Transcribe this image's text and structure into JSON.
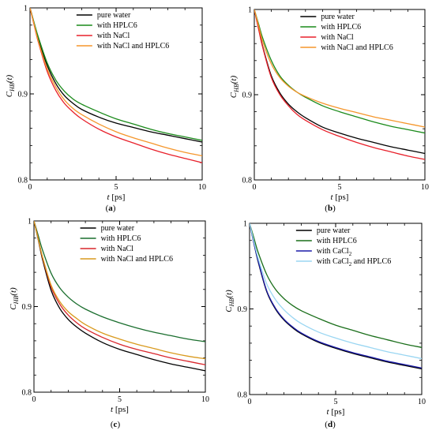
{
  "figure": {
    "panel_labels": [
      {
        "prefix": "(",
        "letter": "a",
        "suffix": ")"
      },
      {
        "prefix": "(",
        "letter": "b",
        "suffix": ")"
      },
      {
        "prefix": "(",
        "letter": "c",
        "suffix": ")"
      },
      {
        "prefix": "(",
        "letter": "d",
        "suffix": ")"
      }
    ]
  },
  "chart_data": [
    {
      "type": "line",
      "panel": "a",
      "xlabel": "t [ps]",
      "ylabel": "C_HB(t)",
      "xlim": [
        0,
        10
      ],
      "ylim": [
        0.8,
        1.0
      ],
      "xticks": [
        0,
        5,
        10
      ],
      "yticks": [
        0.8,
        0.9,
        1
      ],
      "ytick_labels": [
        "0.8",
        "0.9",
        "1"
      ],
      "grid": false,
      "legend_position": "top-right",
      "x": [
        0,
        0.25,
        0.5,
        1,
        1.5,
        2,
        2.5,
        3,
        4,
        5,
        6,
        7,
        8,
        9,
        10
      ],
      "series": [
        {
          "name": "pure water",
          "color": "#000000",
          "values": [
            1.0,
            0.981,
            0.962,
            0.933,
            0.912,
            0.898,
            0.889,
            0.882,
            0.873,
            0.866,
            0.861,
            0.856,
            0.852,
            0.848,
            0.844
          ]
        },
        {
          "name": "with HPLC6",
          "color": "#1a8a1a",
          "values": [
            1.0,
            0.982,
            0.965,
            0.936,
            0.916,
            0.903,
            0.894,
            0.888,
            0.879,
            0.871,
            0.865,
            0.859,
            0.854,
            0.85,
            0.846
          ]
        },
        {
          "name": "with NaCl",
          "color": "#e8202a",
          "values": [
            1.0,
            0.979,
            0.959,
            0.926,
            0.904,
            0.889,
            0.879,
            0.871,
            0.859,
            0.85,
            0.843,
            0.836,
            0.83,
            0.825,
            0.82
          ]
        },
        {
          "name": "with NaCl and HPLC6",
          "color": "#f5962b",
          "values": [
            1.0,
            0.98,
            0.96,
            0.929,
            0.908,
            0.893,
            0.883,
            0.876,
            0.865,
            0.856,
            0.849,
            0.843,
            0.837,
            0.832,
            0.828
          ]
        }
      ]
    },
    {
      "type": "line",
      "panel": "b",
      "xlabel": "t [ps]",
      "ylabel": "C_HB(t)",
      "xlim": [
        0,
        10
      ],
      "ylim": [
        0.8,
        1.0
      ],
      "xticks": [
        0,
        5,
        10
      ],
      "yticks": [
        0.8,
        0.9,
        1
      ],
      "ytick_labels": [
        "0.8",
        "0.9",
        "1"
      ],
      "grid": false,
      "legend_position": "top-right",
      "x": [
        0,
        0.25,
        0.5,
        1,
        1.5,
        2,
        2.5,
        3,
        4,
        5,
        6,
        7,
        8,
        9,
        10
      ],
      "series": [
        {
          "name": "pure water",
          "color": "#000000",
          "values": [
            1.0,
            0.978,
            0.956,
            0.922,
            0.902,
            0.889,
            0.88,
            0.873,
            0.862,
            0.855,
            0.849,
            0.844,
            0.839,
            0.835,
            0.831
          ]
        },
        {
          "name": "with HPLC6",
          "color": "#1a8a1a",
          "values": [
            1.0,
            0.983,
            0.966,
            0.94,
            0.922,
            0.911,
            0.903,
            0.897,
            0.887,
            0.88,
            0.874,
            0.868,
            0.863,
            0.859,
            0.855
          ]
        },
        {
          "name": "with NaCl",
          "color": "#e8202a",
          "values": [
            1.0,
            0.977,
            0.955,
            0.92,
            0.9,
            0.887,
            0.877,
            0.87,
            0.859,
            0.851,
            0.844,
            0.838,
            0.833,
            0.828,
            0.824
          ]
        },
        {
          "name": "with NaCl and HPLC6",
          "color": "#f5962b",
          "values": [
            1.0,
            0.981,
            0.962,
            0.936,
            0.92,
            0.91,
            0.903,
            0.898,
            0.89,
            0.884,
            0.879,
            0.874,
            0.87,
            0.866,
            0.862
          ]
        }
      ]
    },
    {
      "type": "line",
      "panel": "c",
      "xlabel": "t [ps]",
      "ylabel": "C_HB(t)",
      "xlim": [
        0,
        10
      ],
      "ylim": [
        0.8,
        1.0
      ],
      "xticks": [
        0,
        5,
        10
      ],
      "yticks": [
        0.8,
        0.9,
        1
      ],
      "ytick_labels": [
        "0.8",
        "0.9",
        "1"
      ],
      "grid": false,
      "legend_position": "top-right",
      "x": [
        0,
        0.25,
        0.5,
        1,
        1.5,
        2,
        2.5,
        3,
        4,
        5,
        6,
        7,
        8,
        9,
        10
      ],
      "series": [
        {
          "name": "pure water",
          "color": "#000000",
          "values": [
            1.0,
            0.978,
            0.955,
            0.919,
            0.898,
            0.885,
            0.876,
            0.869,
            0.858,
            0.85,
            0.844,
            0.838,
            0.833,
            0.829,
            0.825
          ]
        },
        {
          "name": "with HPLC6",
          "color": "#1a6e2e",
          "values": [
            1.0,
            0.983,
            0.966,
            0.939,
            0.922,
            0.911,
            0.903,
            0.897,
            0.888,
            0.881,
            0.875,
            0.87,
            0.866,
            0.862,
            0.859
          ]
        },
        {
          "name": "with NaCl",
          "color": "#d9262c",
          "values": [
            1.0,
            0.979,
            0.957,
            0.923,
            0.903,
            0.89,
            0.881,
            0.874,
            0.864,
            0.856,
            0.85,
            0.845,
            0.84,
            0.836,
            0.832
          ]
        },
        {
          "name": "with NaCl and HPLC6",
          "color": "#d99a1e",
          "values": [
            1.0,
            0.979,
            0.958,
            0.925,
            0.906,
            0.894,
            0.886,
            0.879,
            0.869,
            0.862,
            0.856,
            0.851,
            0.846,
            0.842,
            0.839
          ]
        }
      ]
    },
    {
      "type": "line",
      "panel": "d",
      "xlabel": "t [ps]",
      "ylabel": "C_HB(t)",
      "xlim": [
        0,
        10
      ],
      "ylim": [
        0.8,
        1.0
      ],
      "xticks": [
        0,
        5,
        10
      ],
      "yticks": [
        0.8,
        0.9,
        1
      ],
      "ytick_labels": [
        "0.8",
        "0.9",
        "1"
      ],
      "grid": false,
      "legend_position": "top-right",
      "x": [
        0,
        0.25,
        0.5,
        1,
        1.5,
        2,
        2.5,
        3,
        4,
        5,
        6,
        7,
        8,
        9,
        10
      ],
      "series": [
        {
          "name": "pure water",
          "color": "#000000",
          "values": [
            1.0,
            0.977,
            0.955,
            0.92,
            0.9,
            0.887,
            0.878,
            0.871,
            0.861,
            0.854,
            0.848,
            0.843,
            0.838,
            0.834,
            0.83
          ]
        },
        {
          "name": "with HPLC6",
          "color": "#1a6e1a",
          "values": [
            1.0,
            0.983,
            0.966,
            0.94,
            0.923,
            0.912,
            0.904,
            0.898,
            0.889,
            0.881,
            0.875,
            0.869,
            0.864,
            0.859,
            0.855
          ]
        },
        {
          "name": "with CaCl2",
          "color": "#1a1aa8",
          "values": [
            1.0,
            0.977,
            0.956,
            0.921,
            0.901,
            0.888,
            0.879,
            0.872,
            0.862,
            0.855,
            0.849,
            0.844,
            0.839,
            0.835,
            0.831
          ]
        },
        {
          "name": "with CaCl2 and HPLC6",
          "color": "#9ad6f2",
          "values": [
            1.0,
            0.979,
            0.959,
            0.929,
            0.911,
            0.899,
            0.89,
            0.883,
            0.873,
            0.866,
            0.86,
            0.855,
            0.85,
            0.846,
            0.842
          ]
        }
      ]
    }
  ]
}
